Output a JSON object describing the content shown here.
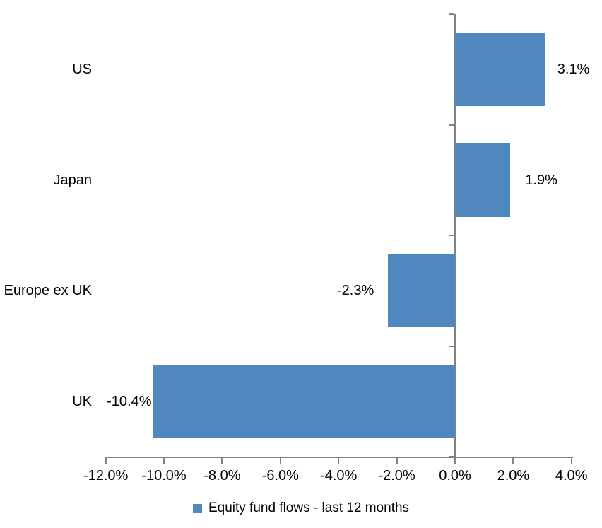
{
  "chart_data": {
    "type": "bar",
    "orientation": "horizontal",
    "title": "",
    "categories": [
      "US",
      "Japan",
      "Europe ex UK",
      "UK"
    ],
    "values": [
      3.1,
      1.9,
      -2.3,
      -10.4
    ],
    "value_labels": [
      "3.1%",
      "1.9%",
      "-2.3%",
      "-10.4%"
    ],
    "series_name": "Equity fund flows - last 12 months",
    "xlim": [
      -12,
      4
    ],
    "x_tick_values": [
      -12,
      -10,
      -8,
      -6,
      -4,
      -2,
      0,
      2,
      4
    ],
    "x_tick_labels": [
      "-12.0%",
      "-10.0%",
      "-8.0%",
      "-6.0%",
      "-4.0%",
      "-2.0%",
      "0.0%",
      "2.0%",
      "4.0%"
    ],
    "grid": false,
    "legend_position": "bottom",
    "colors": {
      "bar": "#4E88BE",
      "axis": "#828282",
      "text": "#000000",
      "background": "#FFFFFF"
    }
  },
  "legend": {
    "label": "Equity fund flows - last 12 months"
  }
}
